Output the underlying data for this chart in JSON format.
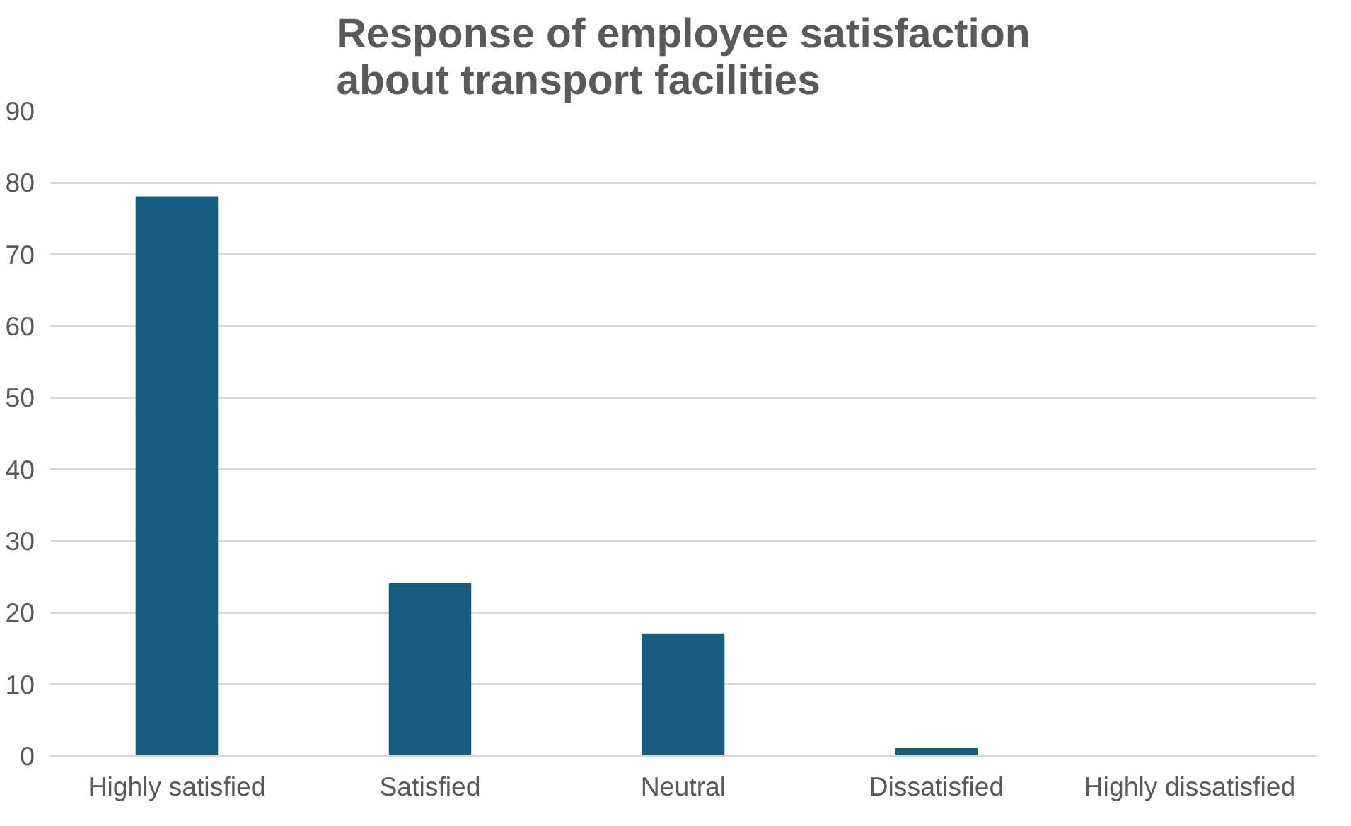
{
  "chart_data": {
    "type": "bar",
    "title": "Response of employee satisfaction about transport facilities",
    "categories": [
      "Highly satisfied",
      "Satisfied",
      "Neutral",
      "Dissatisfied",
      "Highly dissatisfied"
    ],
    "values": [
      78,
      24,
      17,
      1,
      0
    ],
    "color": "#165e80",
    "ylim": [
      0,
      90
    ],
    "yticks": [
      0,
      10,
      20,
      30,
      40,
      50,
      60,
      70,
      80,
      90
    ],
    "grid": "y"
  }
}
